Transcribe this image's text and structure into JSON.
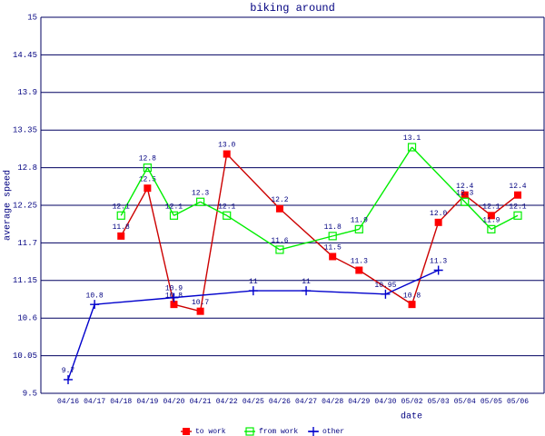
{
  "chart_data": {
    "type": "line",
    "title": "biking around",
    "x_label": "date",
    "y_label": "average speed",
    "categories": [
      "04/16",
      "04/17",
      "04/18",
      "04/19",
      "04/20",
      "04/21",
      "04/22",
      "04/25",
      "04/26",
      "04/27",
      "04/28",
      "04/29",
      "04/30",
      "05/02",
      "05/03",
      "05/04",
      "05/05",
      "05/06"
    ],
    "series": [
      {
        "name": "to work",
        "color": "#ff0000",
        "line_color": "#cc0000",
        "marker": "filled-square",
        "values": [
          null,
          null,
          11.8,
          12.5,
          10.8,
          10.7,
          13.0,
          null,
          12.2,
          null,
          11.5,
          11.3,
          null,
          10.8,
          12.0,
          12.4,
          12.1,
          12.4
        ],
        "value_labels": [
          null,
          null,
          "11.8",
          "12.5",
          "10.8",
          "10.7",
          "13.0",
          null,
          "12.2",
          null,
          "11.5",
          "11.3",
          null,
          "10.8",
          "12.0",
          "12.4",
          "12.1",
          "12.4"
        ]
      },
      {
        "name": "from work",
        "color": "#00ee00",
        "line_color": "#00ee00",
        "marker": "open-square",
        "values": [
          null,
          null,
          12.1,
          12.8,
          12.1,
          12.3,
          12.1,
          null,
          11.6,
          null,
          11.8,
          11.9,
          null,
          13.1,
          null,
          12.3,
          11.9,
          12.1
        ],
        "value_labels": [
          null,
          null,
          "12.1",
          "12.8",
          "12.1",
          "12.3",
          "12.1",
          null,
          "11.6",
          null,
          "11.8",
          "11.9",
          null,
          "13.1",
          null,
          "12.3",
          "11.9",
          "12.1"
        ]
      },
      {
        "name": "other",
        "color": "#0000cc",
        "line_color": "#0000cc",
        "marker": "plus",
        "values": [
          9.7,
          10.8,
          null,
          null,
          10.9,
          null,
          null,
          11,
          null,
          11,
          null,
          null,
          10.95,
          null,
          11.3,
          null,
          null,
          null
        ],
        "value_labels": [
          "9.7",
          "10.8",
          null,
          null,
          "10.9",
          null,
          null,
          "11",
          null,
          "11",
          null,
          null,
          "10.95",
          null,
          "11.3",
          null,
          null,
          null
        ]
      }
    ],
    "ylim": [
      9.5,
      15
    ],
    "yticks": [
      9.5,
      10.05,
      10.6,
      11.15,
      11.7,
      12.25,
      12.8,
      13.35,
      13.9,
      14.45,
      15
    ],
    "grid": true,
    "legend": "bottom"
  }
}
